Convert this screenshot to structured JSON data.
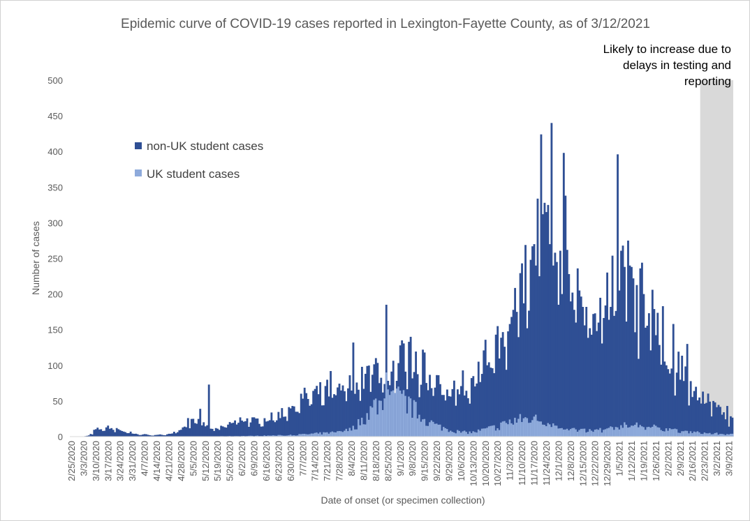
{
  "colors": {
    "non_uk": "#2f4f94",
    "uk": "#8eaadb",
    "shade": "#d9d9d9",
    "text": "#595959"
  },
  "chart_data": {
    "type": "bar",
    "stacked": true,
    "title": "Epidemic curve of COVID-19 cases reported in Lexington-Fayette County, as of 3/12/2021",
    "xlabel": "Date of onset (or specimen collection)",
    "ylabel": "Number of cases",
    "ylim": [
      0,
      500
    ],
    "y_ticks": [
      0,
      50,
      100,
      150,
      200,
      250,
      300,
      350,
      400,
      450,
      500
    ],
    "x_tick_labels": [
      "2/25/2020",
      "3/3/2020",
      "3/10/2020",
      "3/17/2020",
      "3/24/2020",
      "3/31/2020",
      "4/7/2020",
      "4/14/2020",
      "4/21/2020",
      "4/28/2020",
      "5/5/2020",
      "5/12/2020",
      "5/19/2020",
      "5/26/2020",
      "6/2/2020",
      "6/9/2020",
      "6/16/2020",
      "6/23/2020",
      "6/30/2020",
      "7/7/2020",
      "7/14/2020",
      "7/21/2020",
      "7/28/2020",
      "8/4/2020",
      "8/11/2020",
      "8/18/2020",
      "8/25/2020",
      "9/1/2020",
      "9/8/2020",
      "9/15/2020",
      "9/22/2020",
      "9/29/2020",
      "10/6/2020",
      "10/13/2020",
      "10/20/2020",
      "10/27/2020",
      "11/3/2020",
      "11/10/2020",
      "11/17/2020",
      "11/24/2020",
      "12/1/2020",
      "12/8/2020",
      "12/15/2020",
      "12/22/2020",
      "12/29/2020",
      "1/5/2021",
      "1/12/2021",
      "1/19/2021",
      "1/26/2021",
      "2/2/2021",
      "2/9/2021",
      "2/16/2021",
      "2/23/2021",
      "3/2/2021",
      "3/9/2021"
    ],
    "legend": {
      "placement": "upper-left"
    },
    "series": [
      {
        "name": "non-UK student cases",
        "color": "#2f4f94"
      },
      {
        "name": "UK student cases",
        "color": "#8eaadb"
      }
    ],
    "weekly_total_points": [
      [
        0,
        0
      ],
      [
        7,
        1
      ],
      [
        14,
        10
      ],
      [
        21,
        13
      ],
      [
        28,
        9
      ],
      [
        35,
        4
      ],
      [
        42,
        3
      ],
      [
        49,
        2
      ],
      [
        56,
        4
      ],
      [
        63,
        8
      ],
      [
        70,
        25
      ],
      [
        77,
        15
      ],
      [
        84,
        10
      ],
      [
        91,
        18
      ],
      [
        98,
        25
      ],
      [
        105,
        22
      ],
      [
        112,
        25
      ],
      [
        119,
        30
      ],
      [
        126,
        40
      ],
      [
        133,
        55
      ],
      [
        140,
        60
      ],
      [
        147,
        65
      ],
      [
        154,
        72
      ],
      [
        161,
        80
      ],
      [
        168,
        80
      ],
      [
        175,
        100
      ],
      [
        182,
        90
      ],
      [
        189,
        110
      ],
      [
        196,
        105
      ],
      [
        203,
        90
      ],
      [
        210,
        70
      ],
      [
        217,
        70
      ],
      [
        224,
        78
      ],
      [
        231,
        72
      ],
      [
        238,
        110
      ],
      [
        245,
        125
      ],
      [
        252,
        155
      ],
      [
        259,
        235
      ],
      [
        266,
        320
      ],
      [
        273,
        290
      ],
      [
        280,
        230
      ],
      [
        287,
        180
      ],
      [
        294,
        175
      ],
      [
        301,
        170
      ],
      [
        308,
        210
      ],
      [
        315,
        225
      ],
      [
        322,
        195
      ],
      [
        329,
        175
      ],
      [
        336,
        145
      ],
      [
        343,
        110
      ],
      [
        350,
        95
      ],
      [
        357,
        70
      ],
      [
        364,
        50
      ],
      [
        371,
        45
      ],
      [
        378,
        35
      ],
      [
        380,
        35
      ]
    ],
    "weekly_uk_points": [
      [
        0,
        0
      ],
      [
        70,
        0
      ],
      [
        105,
        1
      ],
      [
        126,
        2
      ],
      [
        133,
        3
      ],
      [
        140,
        4
      ],
      [
        147,
        5
      ],
      [
        154,
        6
      ],
      [
        161,
        10
      ],
      [
        168,
        25
      ],
      [
        175,
        45
      ],
      [
        182,
        50
      ],
      [
        189,
        55
      ],
      [
        196,
        40
      ],
      [
        203,
        25
      ],
      [
        210,
        15
      ],
      [
        217,
        10
      ],
      [
        224,
        6
      ],
      [
        231,
        6
      ],
      [
        238,
        10
      ],
      [
        245,
        14
      ],
      [
        252,
        20
      ],
      [
        259,
        24
      ],
      [
        266,
        26
      ],
      [
        273,
        20
      ],
      [
        280,
        15
      ],
      [
        287,
        10
      ],
      [
        294,
        8
      ],
      [
        301,
        8
      ],
      [
        308,
        10
      ],
      [
        315,
        14
      ],
      [
        322,
        16
      ],
      [
        329,
        15
      ],
      [
        336,
        12
      ],
      [
        343,
        10
      ],
      [
        350,
        8
      ],
      [
        357,
        6
      ],
      [
        364,
        5
      ],
      [
        371,
        4
      ],
      [
        380,
        3
      ]
    ],
    "spikes": [
      [
        12,
        0,
        3
      ],
      [
        26,
        0,
        12
      ],
      [
        34,
        0,
        7
      ],
      [
        67,
        0,
        26
      ],
      [
        74,
        0,
        39
      ],
      [
        79,
        0,
        73
      ],
      [
        121,
        0,
        40
      ],
      [
        127,
        0,
        43
      ],
      [
        149,
        0,
        92
      ],
      [
        162,
        0,
        132
      ],
      [
        181,
        90,
        185
      ],
      [
        189,
        0,
        128
      ],
      [
        190,
        0,
        135
      ],
      [
        194,
        0,
        133
      ],
      [
        195,
        0,
        140
      ],
      [
        202,
        0,
        122
      ],
      [
        203,
        0,
        118
      ],
      [
        245,
        0,
        155
      ],
      [
        256,
        0,
        175
      ],
      [
        260,
        0,
        187
      ],
      [
        262,
        0,
        152
      ],
      [
        264,
        0,
        248
      ],
      [
        265,
        0,
        267
      ],
      [
        266,
        0,
        270
      ],
      [
        267,
        0,
        240
      ],
      [
        269,
        0,
        225
      ],
      [
        270,
        0,
        424
      ],
      [
        271,
        0,
        312
      ],
      [
        272,
        0,
        328
      ],
      [
        273,
        0,
        315
      ],
      [
        274,
        0,
        325
      ],
      [
        275,
        0,
        270
      ],
      [
        276,
        0,
        440
      ],
      [
        277,
        0,
        240
      ],
      [
        278,
        0,
        258
      ],
      [
        279,
        0,
        245
      ],
      [
        280,
        0,
        185
      ],
      [
        282,
        0,
        200
      ],
      [
        283,
        0,
        398
      ],
      [
        284,
        0,
        338
      ],
      [
        285,
        0,
        262
      ],
      [
        286,
        0,
        228
      ],
      [
        290,
        0,
        160
      ],
      [
        291,
        0,
        236
      ],
      [
        292,
        0,
        205
      ],
      [
        296,
        0,
        182
      ],
      [
        300,
        0,
        172
      ],
      [
        303,
        0,
        160
      ],
      [
        307,
        0,
        184
      ],
      [
        310,
        0,
        182
      ],
      [
        314,
        0,
        396
      ],
      [
        315,
        0,
        205
      ],
      [
        320,
        0,
        275
      ],
      [
        321,
        0,
        240
      ],
      [
        322,
        0,
        238
      ],
      [
        323,
        0,
        222
      ],
      [
        327,
        0,
        236
      ],
      [
        328,
        0,
        244
      ],
      [
        329,
        0,
        200
      ],
      [
        334,
        0,
        206
      ],
      [
        340,
        0,
        183
      ],
      [
        346,
        0,
        158
      ],
      [
        354,
        0,
        130
      ],
      [
        369,
        0,
        50
      ],
      [
        370,
        0,
        48
      ],
      [
        377,
        0,
        43
      ],
      [
        378,
        0,
        14
      ]
    ],
    "shaded_region": {
      "label": "Likely to increase due to delays in testing and reporting",
      "lines": [
        "Likely to increase due to",
        "delays in testing and",
        "reporting"
      ]
    }
  }
}
